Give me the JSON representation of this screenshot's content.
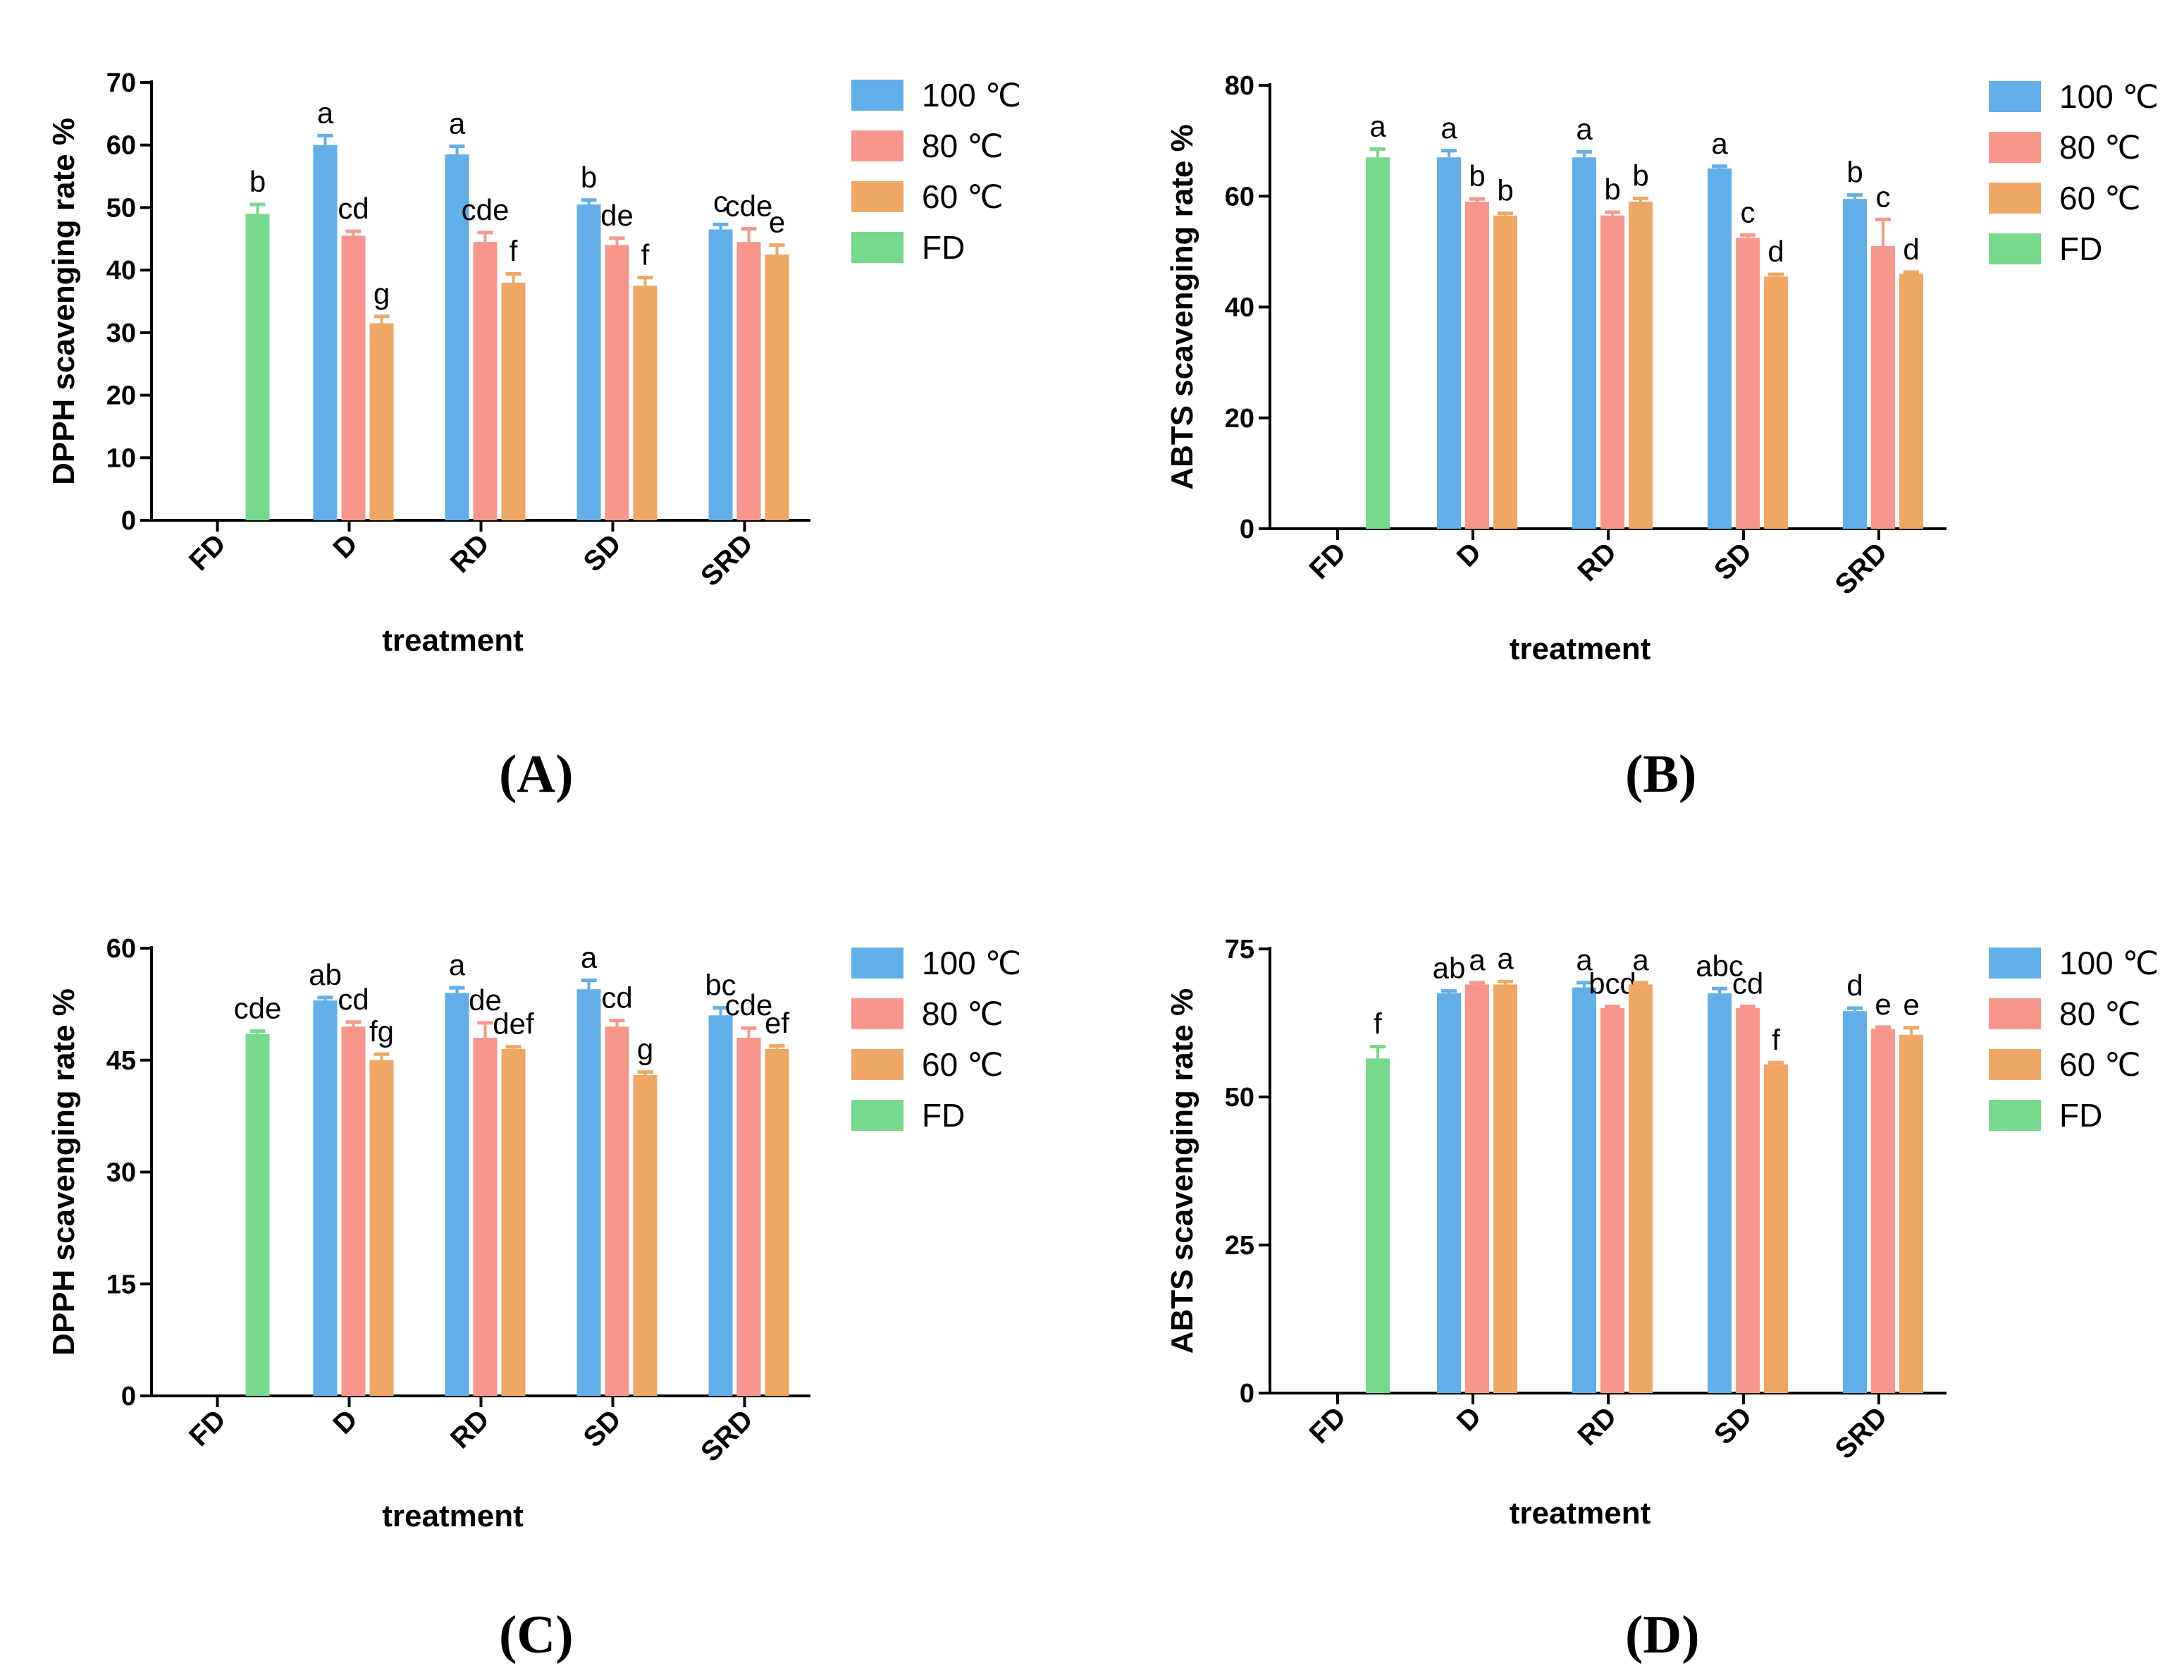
{
  "colors": {
    "100 ℃": "#62aee8",
    "80 ℃": "#f7978b",
    "60 ℃": "#eea765",
    "FD": "#77d98c",
    "axis": "#000000"
  },
  "chart_data": [
    {
      "panel": "(A)",
      "type": "bar",
      "ylabel": "DPPH scavenging rate %",
      "xlabel": "treatment",
      "ylim": [
        0,
        70
      ],
      "yticks": [
        0,
        10,
        20,
        30,
        40,
        50,
        60,
        70
      ],
      "categories": [
        "FD",
        "D",
        "RD",
        "SD",
        "SRD"
      ],
      "legend": [
        "100 ℃",
        "80 ℃",
        "60 ℃",
        "FD"
      ],
      "legend_position": "top-right",
      "grid": false,
      "series": [
        {
          "name": "FD",
          "values": [
            49,
            null,
            null,
            null,
            null
          ],
          "errors": [
            1.5,
            null,
            null,
            null,
            null
          ],
          "labels": [
            "b",
            null,
            null,
            null,
            null
          ]
        },
        {
          "name": "100 ℃",
          "values": [
            null,
            60,
            58.5,
            50.5,
            46.5
          ],
          "errors": [
            null,
            1.5,
            1.3,
            0.7,
            0.8
          ],
          "labels": [
            null,
            "a",
            "a",
            "b",
            "c"
          ]
        },
        {
          "name": "80 ℃",
          "values": [
            null,
            45.5,
            44.5,
            44,
            44.5
          ],
          "errors": [
            null,
            0.7,
            1.5,
            1.1,
            2.1
          ],
          "labels": [
            null,
            "cd",
            "cde",
            "de",
            "cde"
          ]
        },
        {
          "name": "60 ℃",
          "values": [
            null,
            31.5,
            38,
            37.5,
            42.5
          ],
          "errors": [
            null,
            1.1,
            1.4,
            1.3,
            1.5
          ],
          "labels": [
            null,
            "g",
            "f",
            "f",
            "e"
          ]
        }
      ]
    },
    {
      "panel": "(B)",
      "type": "bar",
      "ylabel": "ABTS scavenging rate %",
      "xlabel": "treatment",
      "ylim": [
        0,
        80
      ],
      "yticks": [
        0,
        20,
        40,
        60,
        80
      ],
      "categories": [
        "FD",
        "D",
        "RD",
        "SD",
        "SRD"
      ],
      "legend": [
        "100 ℃",
        "80 ℃",
        "60 ℃",
        "FD"
      ],
      "legend_position": "top-right",
      "grid": false,
      "series": [
        {
          "name": "FD",
          "values": [
            67,
            null,
            null,
            null,
            null
          ],
          "errors": [
            1.5,
            null,
            null,
            null,
            null
          ],
          "labels": [
            "a",
            null,
            null,
            null,
            null
          ]
        },
        {
          "name": "100 ℃",
          "values": [
            null,
            67,
            67,
            65,
            59.5
          ],
          "errors": [
            null,
            1.2,
            1.0,
            0.4,
            0.7
          ],
          "labels": [
            null,
            "a",
            "a",
            "a",
            "b"
          ]
        },
        {
          "name": "80 ℃",
          "values": [
            null,
            59,
            56.5,
            52.5,
            51
          ],
          "errors": [
            null,
            0.5,
            0.6,
            0.5,
            4.8
          ],
          "labels": [
            null,
            "b",
            "b",
            "c",
            "c"
          ]
        },
        {
          "name": "60 ℃",
          "values": [
            null,
            56.5,
            59,
            45.5,
            46
          ],
          "errors": [
            null,
            0.4,
            0.6,
            0.4,
            0.3
          ],
          "labels": [
            null,
            "b",
            "b",
            "d",
            "d"
          ]
        }
      ]
    },
    {
      "panel": "(C)",
      "type": "bar",
      "ylabel": "DPPH scavenging rate %",
      "xlabel": "treatment",
      "ylim": [
        0,
        60
      ],
      "yticks": [
        0,
        15,
        30,
        45,
        60
      ],
      "categories": [
        "FD",
        "D",
        "RD",
        "SD",
        "SRD"
      ],
      "legend": [
        "100 ℃",
        "80 ℃",
        "60 ℃",
        "FD"
      ],
      "legend_position": "top-right",
      "grid": false,
      "series": [
        {
          "name": "FD",
          "values": [
            48.5,
            null,
            null,
            null,
            null
          ],
          "errors": [
            0.4,
            null,
            null,
            null,
            null
          ],
          "labels": [
            "cde",
            null,
            null,
            null,
            null
          ]
        },
        {
          "name": "100 ℃",
          "values": [
            null,
            53,
            54,
            54.5,
            51
          ],
          "errors": [
            null,
            0.4,
            0.7,
            1.2,
            1.0
          ],
          "labels": [
            null,
            "ab",
            "a",
            "a",
            "bc"
          ]
        },
        {
          "name": "80 ℃",
          "values": [
            null,
            49.5,
            48,
            49.5,
            48
          ],
          "errors": [
            null,
            0.6,
            2.0,
            0.8,
            1.3
          ],
          "labels": [
            null,
            "cd",
            "de",
            "cd",
            "cde"
          ]
        },
        {
          "name": "60 ℃",
          "values": [
            null,
            45,
            46.5,
            43,
            46.5
          ],
          "errors": [
            null,
            0.8,
            0.3,
            0.4,
            0.4
          ],
          "labels": [
            null,
            "fg",
            "def",
            "g",
            "ef"
          ]
        }
      ]
    },
    {
      "panel": "(D)",
      "type": "bar",
      "ylabel": "ABTS scavenging rate %",
      "xlabel": "treatment",
      "ylim": [
        0,
        75
      ],
      "yticks": [
        0,
        25,
        50,
        75
      ],
      "categories": [
        "FD",
        "D",
        "RD",
        "SD",
        "SRD"
      ],
      "legend": [
        "100 ℃",
        "80 ℃",
        "60 ℃",
        "FD"
      ],
      "legend_position": "top-right",
      "grid": false,
      "series": [
        {
          "name": "FD",
          "values": [
            56.5,
            null,
            null,
            null,
            null
          ],
          "errors": [
            2.0,
            null,
            null,
            null,
            null
          ],
          "labels": [
            "f",
            null,
            null,
            null,
            null
          ]
        },
        {
          "name": "100 ℃",
          "values": [
            null,
            67.5,
            68.5,
            67.5,
            64.5
          ],
          "errors": [
            null,
            0.4,
            0.8,
            0.8,
            0.5
          ],
          "labels": [
            null,
            "ab",
            "a",
            "abc",
            "d"
          ]
        },
        {
          "name": "80 ℃",
          "values": [
            null,
            69,
            65,
            65,
            61.5
          ],
          "errors": [
            null,
            0.3,
            0.3,
            0.3,
            0.3
          ],
          "labels": [
            null,
            "a",
            "bcd",
            "cd",
            "e"
          ]
        },
        {
          "name": "60 ℃",
          "values": [
            null,
            69,
            69,
            55.5,
            60.5
          ],
          "errors": [
            null,
            0.5,
            0.3,
            0.3,
            1.2
          ],
          "labels": [
            null,
            "a",
            "a",
            "f",
            "e"
          ]
        }
      ]
    }
  ]
}
